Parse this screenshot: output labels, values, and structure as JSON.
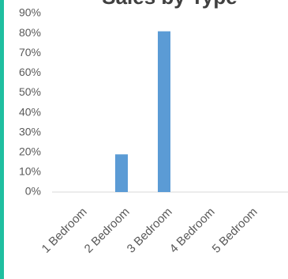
{
  "chart_data": {
    "type": "bar",
    "title": "Sales by Type",
    "categories": [
      "1 Bedroom",
      "2 Bedroom",
      "3 Bedroom",
      "4 Bedroom",
      "5 Bedroom"
    ],
    "values": [
      0,
      19,
      81,
      0,
      0
    ],
    "color": "#5b9bd5",
    "ylim": [
      0,
      90
    ],
    "yticks": [
      {
        "value": 0,
        "label": "0%"
      },
      {
        "value": 10,
        "label": "10%"
      },
      {
        "value": 20,
        "label": "20%"
      },
      {
        "value": 30,
        "label": "30%"
      },
      {
        "value": 40,
        "label": "40%"
      },
      {
        "value": 50,
        "label": "50%"
      },
      {
        "value": 60,
        "label": "60%"
      },
      {
        "value": 70,
        "label": "70%"
      },
      {
        "value": 80,
        "label": "80%"
      },
      {
        "value": 90,
        "label": "90%"
      }
    ],
    "grid": false
  }
}
